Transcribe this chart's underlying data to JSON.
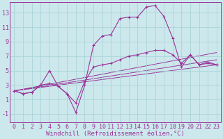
{
  "bg_color": "#cce8ec",
  "grid_color": "#aad4d8",
  "line_color": "#993399",
  "xlabel": "Windchill (Refroidissement éolien,°C)",
  "xlabel_fontsize": 6.5,
  "tick_fontsize": 6,
  "xlim": [
    -0.5,
    23.5
  ],
  "ylim": [
    -2.2,
    14.5
  ],
  "yticks": [
    -1,
    1,
    3,
    5,
    7,
    9,
    11,
    13
  ],
  "xticks": [
    0,
    1,
    2,
    3,
    4,
    5,
    6,
    7,
    8,
    9,
    10,
    11,
    12,
    13,
    14,
    15,
    16,
    17,
    18,
    19,
    20,
    21,
    22,
    23
  ],
  "series1_x": [
    0,
    1,
    2,
    3,
    4,
    5,
    6,
    7,
    8,
    9,
    10,
    11,
    12,
    13,
    14,
    15,
    16,
    17,
    18,
    19,
    20,
    21,
    22,
    23
  ],
  "series1_y": [
    2.2,
    1.8,
    2.0,
    3.0,
    5.0,
    2.8,
    1.8,
    -0.8,
    3.0,
    8.5,
    9.8,
    10.0,
    12.2,
    12.4,
    12.4,
    13.8,
    14.0,
    12.5,
    9.5,
    5.5,
    7.2,
    5.8,
    6.0,
    5.8
  ],
  "series2_x": [
    0,
    1,
    2,
    3,
    4,
    5,
    6,
    7,
    8,
    9,
    10,
    11,
    12,
    13,
    14,
    15,
    16,
    17,
    18,
    19,
    20,
    21,
    22,
    23
  ],
  "series2_y": [
    2.2,
    1.8,
    2.0,
    3.0,
    3.2,
    2.8,
    1.8,
    0.5,
    3.5,
    5.5,
    5.8,
    6.0,
    6.5,
    7.0,
    7.2,
    7.5,
    7.8,
    7.8,
    7.2,
    6.0,
    7.2,
    5.8,
    6.2,
    5.8
  ],
  "series3_x": [
    0,
    23
  ],
  "series3_y": [
    2.2,
    7.5
  ],
  "series4_x": [
    0,
    23
  ],
  "series4_y": [
    2.2,
    6.5
  ],
  "series5_x": [
    0,
    23
  ],
  "series5_y": [
    2.2,
    5.8
  ]
}
